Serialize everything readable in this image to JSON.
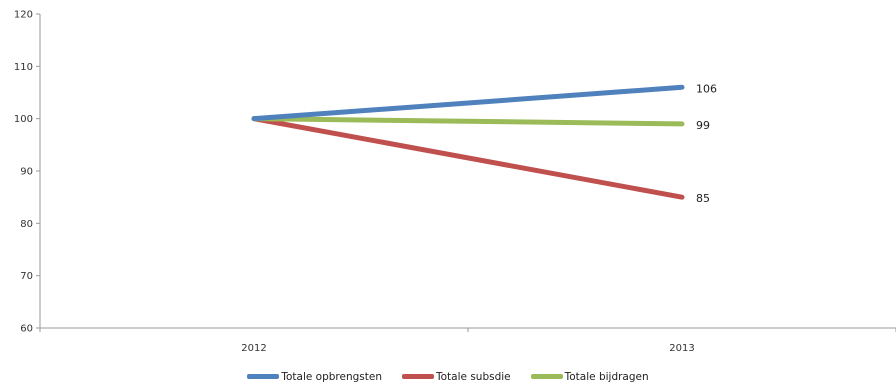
{
  "chart_data": {
    "type": "line",
    "title": "",
    "xlabel": "",
    "ylabel": "",
    "categories": [
      "2012",
      "2013"
    ],
    "ylim": [
      60,
      120
    ],
    "yticks": [
      "60",
      "70",
      "80",
      "90",
      "100",
      "110",
      "120"
    ],
    "grid": false,
    "legend_position": "bottom",
    "series": [
      {
        "name": "Totale opbrengsten",
        "color": "#4f81bd",
        "values": [
          100,
          106
        ],
        "end_label": "106"
      },
      {
        "name": "Totale subsdie",
        "color": "#c0504d",
        "values": [
          100,
          85
        ],
        "end_label": "85"
      },
      {
        "name": "Totale bijdragen",
        "color": "#9bbb59",
        "values": [
          100,
          99
        ],
        "end_label": "99"
      }
    ]
  }
}
